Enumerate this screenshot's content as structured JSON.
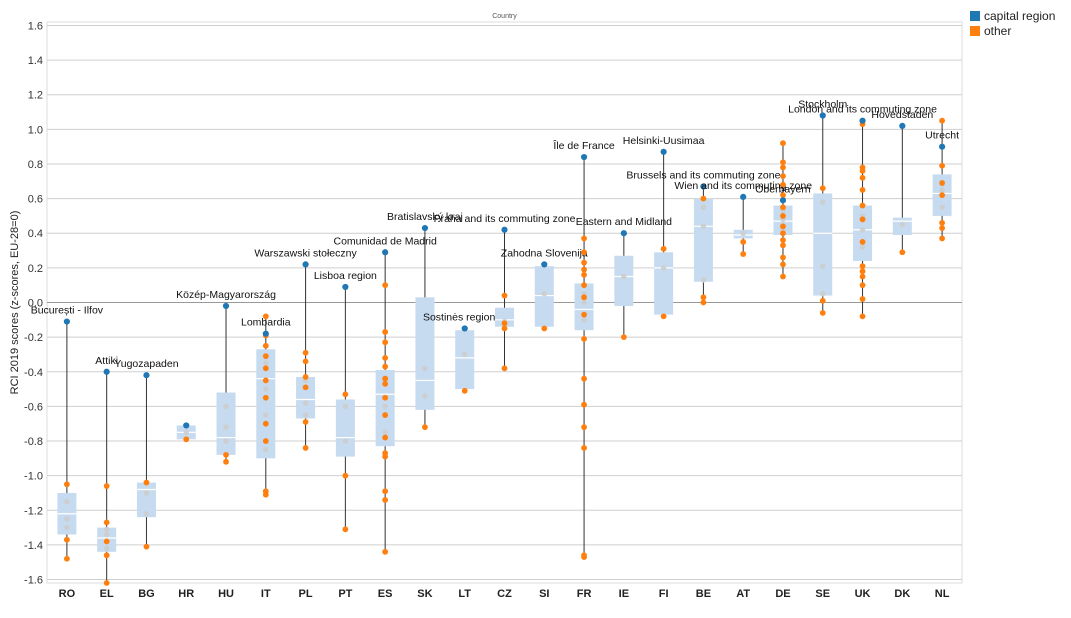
{
  "chart_data": {
    "type": "scatter",
    "title": "Country",
    "ylabel": "RCI 2019 scores (z-scores, EU-28=0)",
    "xlabel": "",
    "ylim": [
      -1.62,
      1.62
    ],
    "yticks": [
      "1.6",
      "1.4",
      "1.2",
      "1.0",
      "0.8",
      "0.6",
      "0.4",
      "0.2",
      "0.0",
      "-0.2",
      "-0.4",
      "-0.6",
      "-0.8",
      "-1.0",
      "-1.2",
      "-1.4",
      "-1.6"
    ],
    "grid": true,
    "legend_position": "top-right",
    "colors": {
      "capital": "#1f77b4",
      "other": "#ff7f0e",
      "box": "#c6dbef",
      "median": "#ffffff",
      "inner_point": "#cccccc",
      "stem": "#333333",
      "grid": "#cfcfcf"
    },
    "legend": [
      {
        "label": "capital region",
        "color": "#1f77b4"
      },
      {
        "label": "other",
        "color": "#ff7f0e"
      }
    ],
    "countries": [
      {
        "code": "RO",
        "capital": -0.11,
        "capital_label": "București - Ilfov",
        "box": [
          -1.34,
          -1.22,
          -1.1
        ],
        "others": [
          -1.48,
          -1.37,
          -1.05
        ],
        "inner": [
          -1.3,
          -1.25,
          -1.15
        ]
      },
      {
        "code": "EL",
        "capital": -0.4,
        "capital_label": "Attiki",
        "box": [
          -1.44,
          -1.36,
          -1.3
        ],
        "others": [
          -1.62,
          -1.46,
          -1.38,
          -1.27,
          -1.06
        ],
        "inner": [
          -1.42,
          -1.34,
          -1.31
        ]
      },
      {
        "code": "BG",
        "capital": -0.42,
        "capital_label": "Yugozapaden",
        "box": [
          -1.24,
          -1.08,
          -1.04
        ],
        "others": [
          -1.41,
          -1.04
        ],
        "inner": [
          -1.22,
          -1.1
        ]
      },
      {
        "code": "HR",
        "capital": -0.71,
        "capital_label": "",
        "box": [
          -0.79,
          -0.75,
          -0.71
        ],
        "others": [
          -0.79
        ],
        "inner": [
          -0.75
        ]
      },
      {
        "code": "HU",
        "capital": -0.02,
        "capital_label": "Közép-Magyarország",
        "box": [
          -0.88,
          -0.78,
          -0.52
        ],
        "others": [
          -0.92,
          -0.88
        ],
        "inner": [
          -0.8,
          -0.72,
          -0.6
        ]
      },
      {
        "code": "IT",
        "capital": -0.18,
        "capital_label": "Lombardia",
        "box": [
          -0.9,
          -0.44,
          -0.27
        ],
        "others": [
          -1.11,
          -1.09,
          -0.8,
          -0.7,
          -0.55,
          -0.45,
          -0.38,
          -0.31,
          -0.25,
          -0.19,
          -0.08
        ],
        "inner": [
          -0.85,
          -0.65,
          -0.5,
          -0.35
        ]
      },
      {
        "code": "PL",
        "capital": 0.22,
        "capital_label": "Warszawski stołeczny",
        "box": [
          -0.67,
          -0.56,
          -0.43
        ],
        "others": [
          -0.84,
          -0.69,
          -0.49,
          -0.43,
          -0.34,
          -0.29
        ],
        "inner": [
          -0.65,
          -0.58,
          -0.45
        ]
      },
      {
        "code": "PT",
        "capital": 0.09,
        "capital_label": "Lisboa region",
        "box": [
          -0.89,
          -0.78,
          -0.56
        ],
        "others": [
          -1.31,
          -1.0,
          -0.53
        ],
        "inner": [
          -0.8,
          -0.6
        ]
      },
      {
        "code": "ES",
        "capital": 0.29,
        "capital_label": "Comunidad de Madrid",
        "box": [
          -0.83,
          -0.53,
          -0.39
        ],
        "others": [
          -1.44,
          -1.14,
          -1.09,
          -0.89,
          -0.87,
          -0.78,
          -0.65,
          -0.55,
          -0.47,
          -0.44,
          -0.37,
          -0.32,
          -0.23,
          -0.17,
          0.1
        ],
        "inner": [
          -0.75,
          -0.6,
          -0.45
        ]
      },
      {
        "code": "SK",
        "capital": 0.43,
        "capital_label": "Bratislavský kraj",
        "box": [
          -0.62,
          -0.45,
          0.03
        ],
        "others": [
          -0.72
        ],
        "inner": [
          -0.54,
          -0.38
        ]
      },
      {
        "code": "LT",
        "capital": -0.15,
        "capital_label": "Sostinės regionas",
        "box": [
          -0.5,
          -0.32,
          -0.16
        ],
        "others": [
          -0.51
        ],
        "inner": [
          -0.3
        ]
      },
      {
        "code": "CZ",
        "capital": 0.42,
        "capital_label": "Praha and its commuting zone",
        "box": [
          -0.14,
          -0.1,
          -0.03
        ],
        "others": [
          -0.38,
          -0.15,
          -0.12,
          0.04
        ],
        "inner": [
          -0.11
        ]
      },
      {
        "code": "SI",
        "capital": 0.22,
        "capital_label": "Zahodna Slovenija",
        "box": [
          -0.14,
          0.04,
          0.21
        ],
        "others": [
          -0.15
        ],
        "inner": [
          0.05
        ]
      },
      {
        "code": "FR",
        "capital": 0.84,
        "capital_label": "Île de France",
        "box": [
          -0.16,
          -0.04,
          0.11
        ],
        "others": [
          -1.47,
          -1.46,
          -0.84,
          -0.72,
          -0.59,
          -0.44,
          -0.21,
          -0.07,
          0.03,
          0.1,
          0.16,
          0.19,
          0.23,
          0.29,
          0.37
        ],
        "inner": [
          -0.1,
          0.0,
          0.05
        ]
      },
      {
        "code": "IE",
        "capital": 0.4,
        "capital_label": "Eastern and Midland",
        "box": [
          -0.02,
          0.15,
          0.27
        ],
        "others": [
          -0.2
        ],
        "inner": [
          0.15
        ]
      },
      {
        "code": "FI",
        "capital": 0.87,
        "capital_label": "Helsinki-Uusimaa",
        "box": [
          -0.07,
          0.2,
          0.29
        ],
        "others": [
          -0.08,
          0.31
        ],
        "inner": [
          0.2
        ]
      },
      {
        "code": "BE",
        "capital": 0.67,
        "capital_label": "Brussels and its commuting zone",
        "box": [
          0.12,
          0.44,
          0.6
        ],
        "others": [
          0.0,
          0.03,
          0.6
        ],
        "inner": [
          0.13,
          0.44,
          0.55
        ]
      },
      {
        "code": "AT",
        "capital": 0.61,
        "capital_label": "Wien and its commuting zone",
        "box": [
          0.37,
          0.39,
          0.42
        ],
        "others": [
          0.28,
          0.35
        ],
        "inner": [
          0.4
        ]
      },
      {
        "code": "DE",
        "capital": 0.59,
        "capital_label": "Oberbayern",
        "box": [
          0.39,
          0.47,
          0.56
        ],
        "others": [
          0.15,
          0.22,
          0.26,
          0.33,
          0.36,
          0.4,
          0.44,
          0.5,
          0.55,
          0.62,
          0.68,
          0.73,
          0.78,
          0.81,
          0.92
        ],
        "inner": [
          0.42,
          0.48,
          0.53
        ]
      },
      {
        "code": "SE",
        "capital": 1.08,
        "capital_label": "Stockholm",
        "box": [
          0.04,
          0.4,
          0.63
        ],
        "others": [
          -0.06,
          0.01,
          0.66
        ],
        "inner": [
          0.05,
          0.21,
          0.58
        ]
      },
      {
        "code": "UK",
        "capital": 1.05,
        "capital_label": "London and its commuting zone",
        "box": [
          0.24,
          0.42,
          0.56
        ],
        "others": [
          -0.08,
          0.02,
          0.1,
          0.15,
          0.18,
          0.21,
          0.35,
          0.48,
          0.56,
          0.65,
          0.72,
          0.76,
          0.78,
          1.03
        ],
        "inner": [
          0.32,
          0.42,
          0.5
        ]
      },
      {
        "code": "DK",
        "capital": 1.02,
        "capital_label": "Hovedstaden",
        "box": [
          0.39,
          0.47,
          0.49
        ],
        "others": [
          0.29
        ],
        "inner": [
          0.45
        ]
      },
      {
        "code": "NL",
        "capital": 0.9,
        "capital_label": "Utrecht",
        "box": [
          0.5,
          0.63,
          0.74
        ],
        "others": [
          0.37,
          0.43,
          0.46,
          0.62,
          0.69,
          0.79,
          1.05
        ],
        "inner": [
          0.55,
          0.65
        ]
      }
    ]
  }
}
